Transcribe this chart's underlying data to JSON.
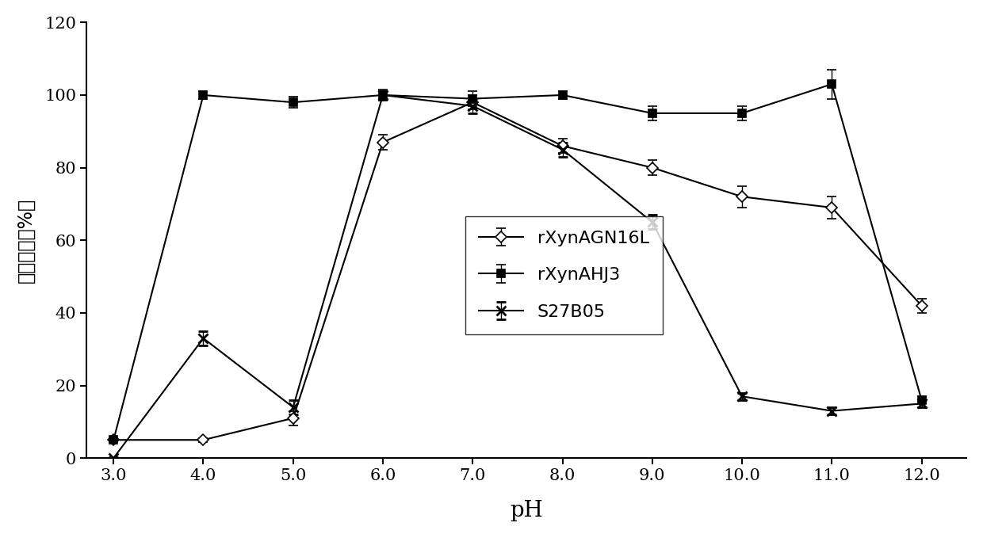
{
  "ph_values": [
    3.0,
    4.0,
    5.0,
    6.0,
    7.0,
    8.0,
    9.0,
    10.0,
    11.0,
    12.0
  ],
  "rXynAGN16L": {
    "y": [
      5,
      5,
      11,
      87,
      98,
      86,
      80,
      72,
      69,
      42
    ],
    "yerr": [
      0.5,
      0.5,
      2,
      2,
      2,
      2,
      2,
      3,
      3,
      2
    ],
    "label": "rXynAGN16L"
  },
  "rXynAHJ3": {
    "y": [
      5,
      100,
      98,
      100,
      99,
      100,
      95,
      95,
      103,
      16
    ],
    "yerr": [
      0.5,
      1,
      1.5,
      1.5,
      2,
      1,
      2,
      2,
      4,
      1
    ],
    "label": "rXynAHJ3"
  },
  "S27B05": {
    "y": [
      0,
      33,
      14,
      100,
      97,
      85,
      65,
      17,
      13,
      15
    ],
    "yerr": [
      0.3,
      2,
      2,
      1,
      2,
      2,
      2,
      1,
      1,
      1
    ],
    "label": "S27B05"
  },
  "xlabel": "pH",
  "ylabel": "相对酶活（%）",
  "ylim": [
    0,
    120
  ],
  "yticks": [
    0,
    20,
    40,
    60,
    80,
    100,
    120
  ],
  "xlim": [
    2.7,
    12.5
  ],
  "xticks": [
    3.0,
    4.0,
    5.0,
    6.0,
    7.0,
    8.0,
    9.0,
    10.0,
    11.0,
    12.0
  ],
  "line_color": "#000000",
  "figsize": [
    12.4,
    6.79
  ],
  "dpi": 100
}
